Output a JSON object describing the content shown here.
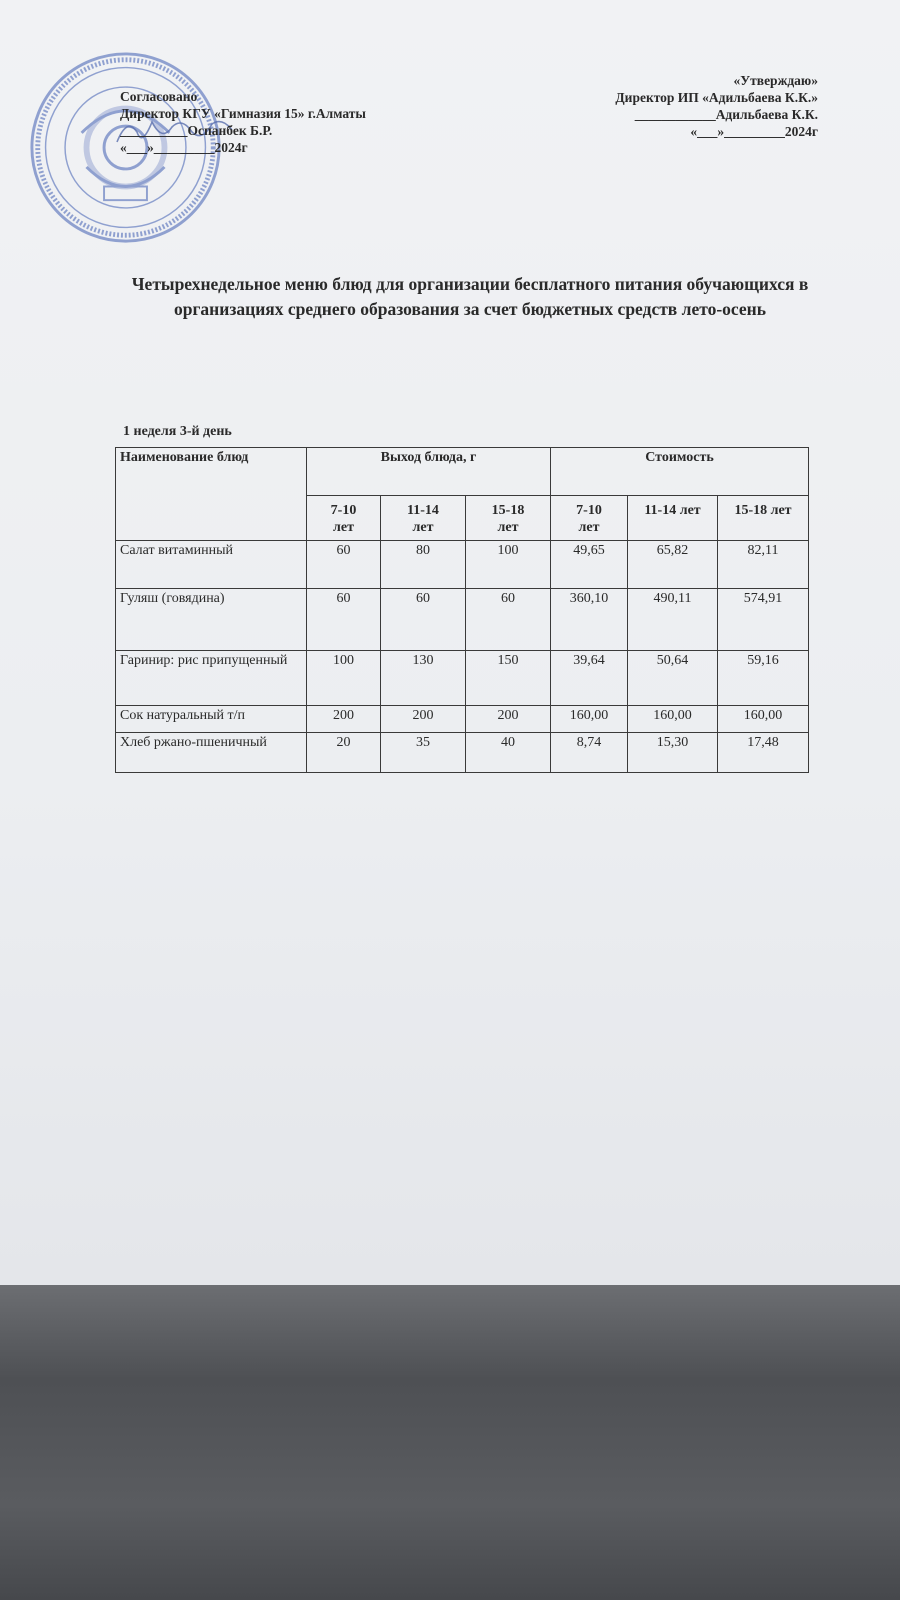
{
  "approval_left": {
    "line1": "Согласовано",
    "line2": "Директор КГУ «Гимназия 15» г.Алматы",
    "line3": "__________Оспанбек Б.Р.",
    "line4": "«___»_________2024г"
  },
  "approval_right": {
    "line1": "«Утверждаю»",
    "line2": "Директор ИП «Адильбаева К.К.»",
    "line3": "____________Адильбаева К.К.",
    "line4": "«___»_________2024г"
  },
  "title": "Четырехнедельное меню блюд для организации бесплатного питания обучающихся в организациях среднего образования за счет бюджетных средств лето-осень",
  "subtitle": "1 неделя 3-й день",
  "table": {
    "headers": {
      "name": "Наименование блюд",
      "yield": "Выход блюда, г",
      "cost": "Стоимость",
      "ages": [
        "7-10 лет",
        "11-14 лет",
        "15-18 лет"
      ]
    },
    "rows": [
      {
        "name": "Салат витаминный",
        "yield": [
          "60",
          "80",
          "100"
        ],
        "cost": [
          "49,65",
          "65,82",
          "82,11"
        ]
      },
      {
        "name": "Гуляш (говядина)",
        "yield": [
          "60",
          "60",
          "60"
        ],
        "cost": [
          "360,10",
          "490,11",
          "574,91"
        ]
      },
      {
        "name": "Гаринир: рис припущенный",
        "yield": [
          "100",
          "130",
          "150"
        ],
        "cost": [
          "39,64",
          "50,64",
          "59,16"
        ]
      },
      {
        "name": "Сок натуральный т/п",
        "yield": [
          "200",
          "200",
          "200"
        ],
        "cost": [
          "160,00",
          "160,00",
          "160,00"
        ]
      },
      {
        "name": "Хлеб ржано-пшеничный",
        "yield": [
          "20",
          "35",
          "40"
        ],
        "cost": [
          "8,74",
          "15,30",
          "17,48"
        ]
      }
    ]
  },
  "colors": {
    "stamp": "#6f86c4",
    "ink": "#2a2a2a",
    "paper": "#eef0f2"
  }
}
